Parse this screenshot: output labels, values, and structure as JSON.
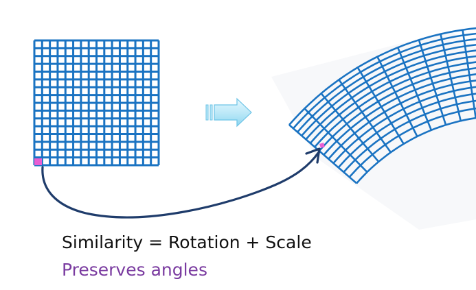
{
  "caption": {
    "main": "Similarity = Rotation + Scale",
    "sub": "Preserves angles"
  },
  "colors": {
    "grid": "#1a73c2",
    "corner_highlight": "#e95ed3",
    "map_arrow": "#1f3c6b",
    "block_arrow_fill": "#bde9f8",
    "block_arrow_stroke": "#6cc3e6",
    "caption_main": "#111111",
    "caption_sub": "#7a3ba0"
  },
  "source_grid": {
    "cells": 16
  },
  "warped_grid": {
    "rows": 14,
    "cols": 16
  },
  "icons": [
    "block-right-arrow-icon",
    "curved-mapping-arrow-icon"
  ]
}
